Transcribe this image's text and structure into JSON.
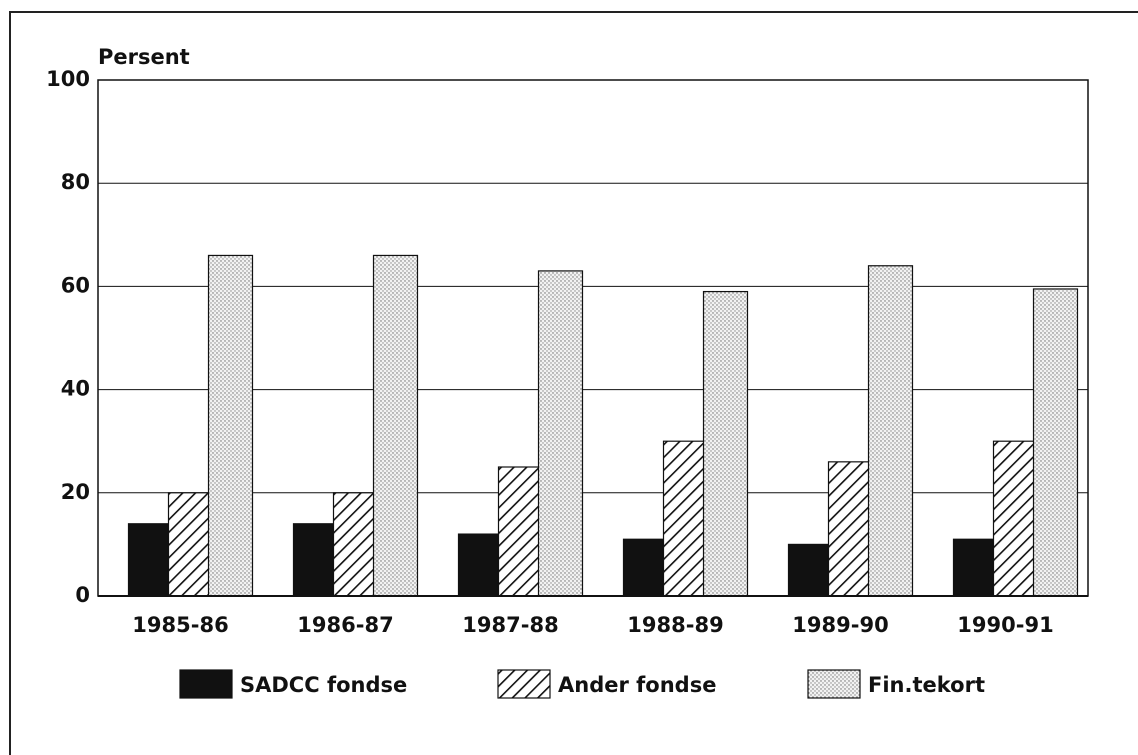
{
  "chart_data": {
    "type": "bar",
    "y_label": "Persent",
    "categories": [
      "1985-86",
      "1986-87",
      "1987-88",
      "1988-89",
      "1989-90",
      "1990-91"
    ],
    "series": [
      {
        "name": "SADCC fondse",
        "color": "#111111",
        "pattern": "solid",
        "values": [
          14,
          14,
          12,
          11,
          10,
          11
        ]
      },
      {
        "name": "Ander fondse",
        "color": "#111111",
        "pattern": "hatch",
        "values": [
          20,
          20,
          25,
          30,
          26,
          30
        ]
      },
      {
        "name": "Fin.tekort",
        "color": "#111111",
        "pattern": "dots",
        "values": [
          66,
          66,
          63,
          59,
          64,
          59.5
        ]
      }
    ],
    "ylim": [
      0,
      100
    ],
    "yticks": [
      0,
      20,
      40,
      60,
      80,
      100
    ],
    "grid": true
  }
}
